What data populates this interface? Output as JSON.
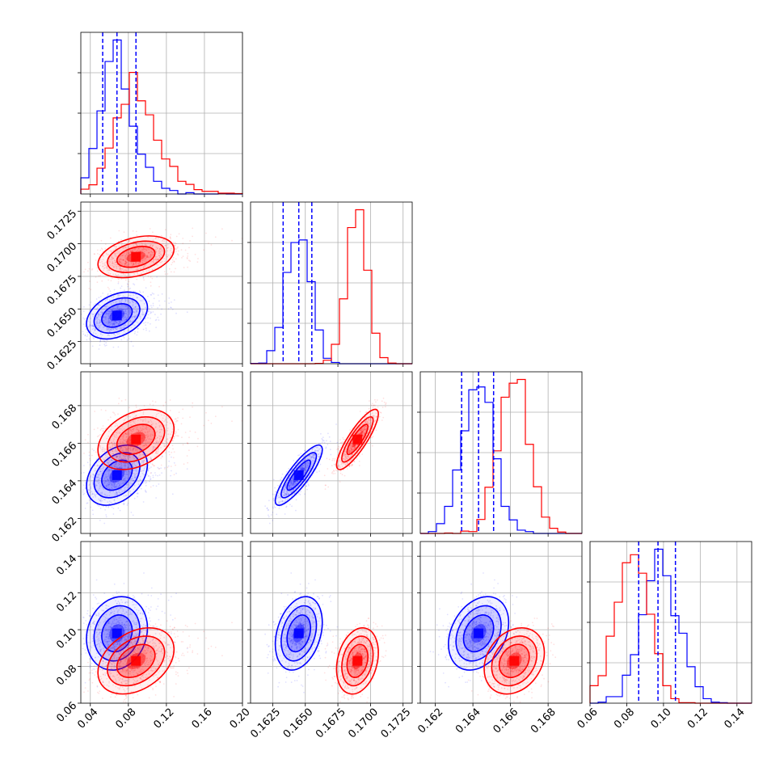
{
  "chart_data": {
    "type": "corner",
    "title": "",
    "colors": {
      "blue": "#0000ff",
      "red": "#ff0000",
      "grid": "#b0b0b0",
      "frame": "#000000"
    },
    "grid": true,
    "parameters": [
      {
        "index": 0,
        "range": [
          0.03,
          0.2
        ],
        "ticks": [
          "0.04",
          "0.08",
          "0.12",
          "0.16",
          "0.20"
        ],
        "tick_values": [
          0.04,
          0.08,
          0.12,
          0.16,
          0.2
        ]
      },
      {
        "index": 1,
        "range": [
          0.1608,
          0.1732
        ],
        "ticks": [
          "0.1625",
          "0.1650",
          "0.1675",
          "0.1700",
          "0.1725"
        ],
        "tick_values": [
          0.1625,
          0.165,
          0.1675,
          0.17,
          0.1725
        ]
      },
      {
        "index": 2,
        "range": [
          0.1612,
          0.1698
        ],
        "ticks": [
          "0.162",
          "0.164",
          "0.166",
          "0.168"
        ],
        "tick_values": [
          0.162,
          0.164,
          0.166,
          0.168
        ]
      },
      {
        "index": 3,
        "range": [
          0.06,
          0.148
        ],
        "ticks": [
          "0.06",
          "0.08",
          "0.10",
          "0.12",
          "0.14"
        ],
        "tick_values": [
          0.06,
          0.08,
          0.1,
          0.12,
          0.14
        ]
      }
    ],
    "series": [
      {
        "name": "",
        "color": "#0000ff",
        "mean": [
          0.068,
          0.1645,
          0.1643,
          0.098
        ],
        "sd": [
          0.016,
          0.0009,
          0.0008,
          0.01
        ],
        "quantiles": [
          [
            0.053,
            0.068,
            0.088
          ],
          [
            0.1633,
            0.1645,
            0.1655
          ],
          [
            0.1634,
            0.1643,
            0.1651
          ],
          [
            0.0865,
            0.097,
            0.1065
          ]
        ],
        "corr": {
          "0-1": 0.35,
          "0-2": 0.35,
          "1-2": 0.85,
          "0-3": 0.15,
          "1-3": 0.3,
          "2-3": 0.3
        }
      },
      {
        "name": "",
        "color": "#ff0000",
        "mean": [
          0.088,
          0.169,
          0.1662,
          0.083
        ],
        "sd": [
          0.02,
          0.0008,
          0.0008,
          0.009
        ],
        "quantiles": [],
        "corr": {
          "0-1": 0.35,
          "0-2": 0.35,
          "1-2": 0.85,
          "0-3": 0.35,
          "1-3": 0.25,
          "2-3": 0.25
        }
      }
    ]
  }
}
